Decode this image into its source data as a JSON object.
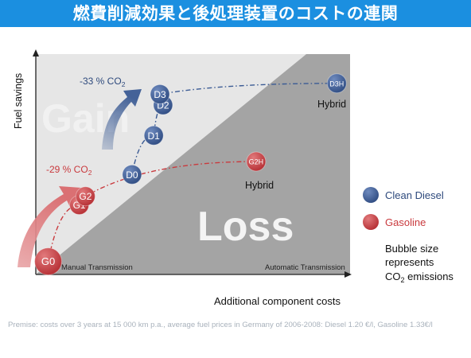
{
  "title": "燃費削減効果と後処理装置のコスト の連関",
  "title_display": "燃費削減効果と後処理装置のコストの連関",
  "footnote": "Premise: costs over 3 years at 15 000 km p.a., average fuel prices in Germany of 2006-2008: Diesel 1.20 €/l, Gasoline 1.33€/l",
  "chart_data": {
    "type": "scatter",
    "xlabel": "Additional component costs",
    "ylabel": "Fuel savings",
    "zone_labels": {
      "gain": "Gain",
      "loss": "Loss"
    },
    "axis_annotations": {
      "left": "Manual Transmission",
      "right": "Automatic Transmission"
    },
    "xlim": [
      0,
      100
    ],
    "ylim": [
      0,
      100
    ],
    "colors": {
      "diesel": "#3b5b94",
      "gasoline": "#c93a3e",
      "gain_zone": "#e6e6e6",
      "loss_zone": "#a4a4a4"
    },
    "series": [
      {
        "name": "Clean Diesel",
        "color": "#3b5b94",
        "points": [
          {
            "label": "D0",
            "x": 31,
            "y": 46,
            "r": 12
          },
          {
            "label": "D1",
            "x": 38,
            "y": 64,
            "r": 12
          },
          {
            "label": "D2",
            "x": 41,
            "y": 78,
            "r": 12
          },
          {
            "label": "D3",
            "x": 40,
            "y": 83,
            "r": 12
          },
          {
            "label": "D3H",
            "x": 97,
            "y": 88,
            "r": 12
          }
        ]
      },
      {
        "name": "Gasoline",
        "color": "#c93a3e",
        "points": [
          {
            "label": "G0",
            "x": 4,
            "y": 6,
            "r": 17
          },
          {
            "label": "G1",
            "x": 14,
            "y": 32,
            "r": 12
          },
          {
            "label": "G2",
            "x": 16,
            "y": 36,
            "r": 12
          },
          {
            "label": "G2H",
            "x": 71,
            "y": 52,
            "r": 12
          }
        ]
      }
    ],
    "annotations": [
      {
        "text": "Hybrid",
        "near": "D3H"
      },
      {
        "text": "Hybrid",
        "near": "G2H"
      }
    ],
    "arrow_labels": [
      {
        "text": "-33 % CO",
        "sub": "2",
        "series": "Clean Diesel"
      },
      {
        "text": "-29 % CO",
        "sub": "2",
        "series": "Gasoline"
      }
    ],
    "legend": {
      "placement": "right",
      "items": [
        {
          "text": "Clean Diesel",
          "color": "#3b5b94"
        },
        {
          "text": "Gasoline",
          "color": "#c93a3e"
        }
      ],
      "note_lines": [
        "Bubble size",
        "represents"
      ],
      "note_last": {
        "text": "CO",
        "sub": "2",
        "tail": " emissions"
      }
    }
  }
}
